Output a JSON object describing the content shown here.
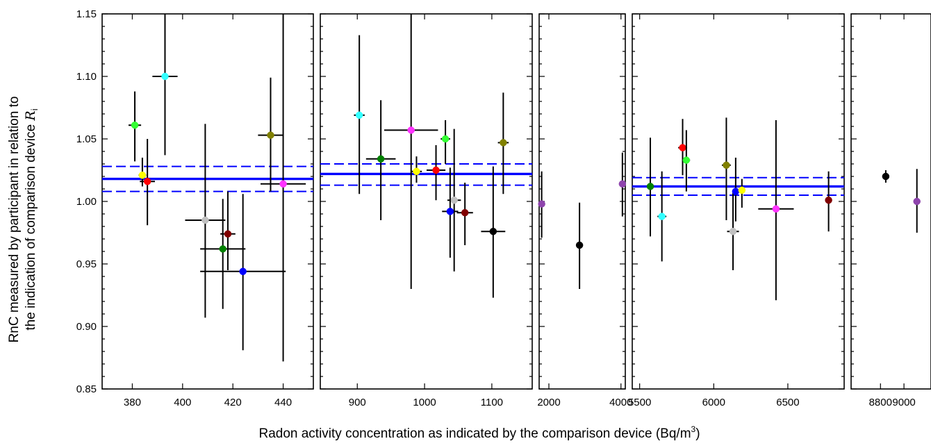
{
  "xlabel": "Radon activity concentration as indicated by the comparison device (Bq/m",
  "xlabel_sup": "3",
  "xlabel_close": ")",
  "ylabel_line1": "RnC measured by participant in relation to",
  "ylabel_line2": "the indication of comparison device ",
  "ylabel_symbol": "R",
  "ylabel_sub": "i",
  "colors": {
    "mean": "#0000ff",
    "errorbar": "#000000",
    "lime": "#33ff33",
    "yellow": "#ffff00",
    "red": "#ff0000",
    "cyan": "#33ffff",
    "silver": "#c0c0c0",
    "maroon": "#800000",
    "green": "#008000",
    "blue": "#0000ff",
    "olive": "#808000",
    "magenta": "#ff33ff",
    "black": "#000000",
    "purple": "#8e44ad"
  },
  "chart_data": [
    {
      "type": "scatter",
      "panel": 1,
      "xlim": [
        368,
        452
      ],
      "ylim": [
        0.85,
        1.15
      ],
      "xticks": [
        380,
        400,
        420,
        440
      ],
      "xtick_labels": [
        "380",
        "400",
        "420",
        "440"
      ],
      "yticks": [
        0.85,
        0.9,
        0.95,
        1.0,
        1.05,
        1.1,
        1.15
      ],
      "ytick_labels": [
        "0.85",
        "0.90",
        "0.95",
        "1.00",
        "1.05",
        "1.10",
        "1.15"
      ],
      "mean": 1.018,
      "mean_ci": [
        1.008,
        1.028
      ],
      "points": [
        {
          "x": 381,
          "y": 1.061,
          "xerr": 2.5,
          "yerr": [
            1.032,
            1.088
          ],
          "color": "lime"
        },
        {
          "x": 384,
          "y": 1.021,
          "xerr": 1.5,
          "yerr": [
            1.012,
            1.035
          ],
          "color": "yellow"
        },
        {
          "x": 386,
          "y": 1.016,
          "xerr": 3.0,
          "yerr": [
            0.981,
            1.05
          ],
          "color": "red"
        },
        {
          "x": 393,
          "y": 1.1,
          "xerr": 5.0,
          "yerr": [
            1.037,
            1.15
          ],
          "color": "cyan"
        },
        {
          "x": 409,
          "y": 0.985,
          "xerr": 8.0,
          "yerr": [
            0.907,
            1.062
          ],
          "color": "silver"
        },
        {
          "x": 418,
          "y": 0.974,
          "xerr": 3.0,
          "yerr": [
            0.945,
            1.008
          ],
          "color": "maroon"
        },
        {
          "x": 416,
          "y": 0.962,
          "xerr": 9.0,
          "yerr": [
            0.914,
            1.002
          ],
          "color": "green"
        },
        {
          "x": 424,
          "y": 0.944,
          "xerr": 17.0,
          "yerr": [
            0.881,
            1.006
          ],
          "color": "blue"
        },
        {
          "x": 435,
          "y": 1.053,
          "xerr": 5.0,
          "yerr": [
            1.008,
            1.099
          ],
          "color": "olive"
        },
        {
          "x": 440,
          "y": 1.014,
          "xerr": 9.0,
          "yerr": [
            0.872,
            1.15
          ],
          "color": "magenta"
        }
      ]
    },
    {
      "type": "scatter",
      "panel": 2,
      "xlim": [
        845,
        1160
      ],
      "ylim": [
        0.85,
        1.15
      ],
      "xticks": [
        900,
        1000,
        1100
      ],
      "xtick_labels": [
        "900",
        "1000",
        "1100"
      ],
      "mean": 1.022,
      "mean_ci": [
        1.013,
        1.03
      ],
      "points": [
        {
          "x": 903,
          "y": 1.069,
          "xerr": 8,
          "yerr": [
            1.006,
            1.133
          ],
          "color": "cyan"
        },
        {
          "x": 935,
          "y": 1.034,
          "xerr": 22,
          "yerr": [
            0.985,
            1.081
          ],
          "color": "green"
        },
        {
          "x": 980,
          "y": 1.057,
          "xerr": 40,
          "yerr": [
            0.93,
            1.15
          ],
          "color": "magenta"
        },
        {
          "x": 988,
          "y": 1.024,
          "xerr": 8,
          "yerr": [
            1.015,
            1.036
          ],
          "color": "yellow"
        },
        {
          "x": 1017,
          "y": 1.025,
          "xerr": 14,
          "yerr": [
            1.001,
            1.045
          ],
          "color": "red"
        },
        {
          "x": 1031,
          "y": 1.05,
          "xerr": 7,
          "yerr": [
            1.03,
            1.065
          ],
          "color": "lime"
        },
        {
          "x": 1044,
          "y": 1.001,
          "xerr": 10,
          "yerr": [
            0.944,
            1.058
          ],
          "color": "silver"
        },
        {
          "x": 1038,
          "y": 0.992,
          "xerr": 12,
          "yerr": [
            0.955,
            1.027
          ],
          "color": "blue"
        },
        {
          "x": 1060,
          "y": 0.991,
          "xerr": 12,
          "yerr": [
            0.965,
            1.015
          ],
          "color": "maroon"
        },
        {
          "x": 1102,
          "y": 0.976,
          "xerr": 18,
          "yerr": [
            0.923,
            1.028
          ],
          "color": "black"
        },
        {
          "x": 1117,
          "y": 1.047,
          "xerr": 8,
          "yerr": [
            1.006,
            1.087
          ],
          "color": "olive"
        }
      ]
    },
    {
      "type": "scatter",
      "panel": 3,
      "xlim": [
        1730,
        4120
      ],
      "ylim": [
        0.85,
        1.15
      ],
      "xticks": [
        2000,
        4000
      ],
      "xtick_labels": [
        "2000",
        "4000"
      ],
      "points": [
        {
          "x": 1800,
          "y": 0.998,
          "xerr": 30,
          "yerr": [
            0.971,
            1.024
          ],
          "color": "purple"
        },
        {
          "x": 2850,
          "y": 0.965,
          "xerr": 0,
          "yerr": [
            0.93,
            0.999
          ],
          "color": "black"
        },
        {
          "x": 4040,
          "y": 1.014,
          "xerr": 40,
          "yerr": [
            0.988,
            1.039
          ],
          "color": "purple"
        }
      ]
    },
    {
      "type": "scatter",
      "panel": 4,
      "xlim": [
        5450,
        6880
      ],
      "ylim": [
        0.85,
        1.15
      ],
      "xticks": [
        5500,
        6000,
        6500
      ],
      "xtick_labels": [
        "5500",
        "6000",
        "6500"
      ],
      "mean": 1.012,
      "mean_ci": [
        1.005,
        1.019
      ],
      "points": [
        {
          "x": 5572,
          "y": 1.012,
          "xerr": 10,
          "yerr": [
            0.972,
            1.051
          ],
          "color": "green"
        },
        {
          "x": 5650,
          "y": 0.988,
          "xerr": 30,
          "yerr": [
            0.952,
            1.024
          ],
          "color": "cyan"
        },
        {
          "x": 5790,
          "y": 1.043,
          "xerr": 30,
          "yerr": [
            1.021,
            1.066
          ],
          "color": "red"
        },
        {
          "x": 5815,
          "y": 1.033,
          "xerr": 25,
          "yerr": [
            1.008,
            1.057
          ],
          "color": "lime"
        },
        {
          "x": 6085,
          "y": 1.029,
          "xerr": 30,
          "yerr": [
            0.985,
            1.067
          ],
          "color": "olive"
        },
        {
          "x": 6130,
          "y": 0.976,
          "xerr": 40,
          "yerr": [
            0.945,
            1.008
          ],
          "color": "silver"
        },
        {
          "x": 6148,
          "y": 1.008,
          "xerr": 20,
          "yerr": [
            0.984,
            1.035
          ],
          "color": "blue"
        },
        {
          "x": 6190,
          "y": 1.009,
          "xerr": 20,
          "yerr": [
            0.995,
            1.018
          ],
          "color": "yellow"
        },
        {
          "x": 6420,
          "y": 0.994,
          "xerr": 120,
          "yerr": [
            0.921,
            1.065
          ],
          "color": "magenta"
        },
        {
          "x": 6775,
          "y": 1.001,
          "xerr": 20,
          "yerr": [
            0.976,
            1.024
          ],
          "color": "maroon"
        }
      ]
    },
    {
      "type": "scatter",
      "panel": 5,
      "xlim": [
        8550,
        9230
      ],
      "ylim": [
        0.85,
        1.15
      ],
      "xticks": [
        8800,
        9000
      ],
      "xtick_labels": [
        "8800",
        "9000"
      ],
      "points": [
        {
          "x": 8845,
          "y": 1.02,
          "xerr": 25,
          "yerr": [
            1.015,
            1.025
          ],
          "color": "black"
        },
        {
          "x": 9110,
          "y": 1.0,
          "xerr": 0,
          "yerr": [
            0.975,
            1.026
          ],
          "color": "purple"
        }
      ]
    }
  ]
}
